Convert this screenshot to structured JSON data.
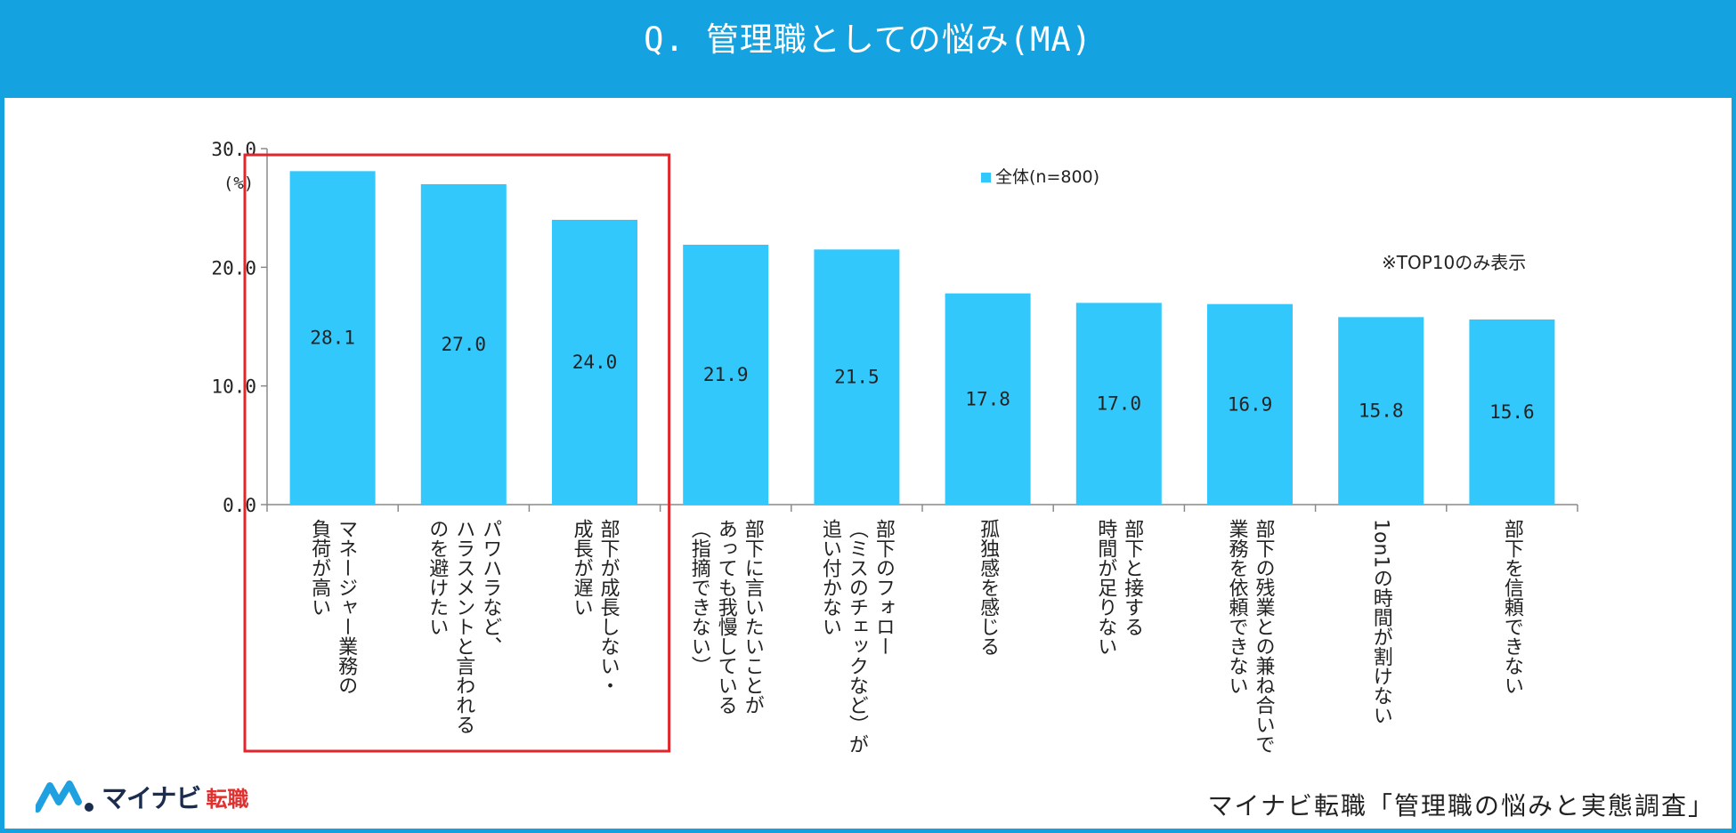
{
  "header": {
    "title": "Q. 管理職としての悩み(MA)"
  },
  "chart_data": {
    "type": "bar",
    "title": "Q. 管理職としての悩み(MA)",
    "ylabel": "(%)",
    "ylim": [
      0,
      30
    ],
    "yticks": [
      "30.0",
      "20.0",
      "10.0",
      "0.0"
    ],
    "legend": {
      "label": "全体(n=800)",
      "placement": "top-center"
    },
    "note": "※TOP10のみ表示",
    "bar_color": "#33c8fb",
    "highlight_color": "#e0262b",
    "highlighted_categories": [
      0,
      1,
      2
    ],
    "series": [
      {
        "name": "全体(n=800)",
        "values": [
          28.1,
          27.0,
          24.0,
          21.9,
          21.5,
          17.8,
          17.0,
          16.9,
          15.8,
          15.6
        ],
        "labels": [
          "28.1",
          "27.0",
          "24.0",
          "21.9",
          "21.5",
          "17.8",
          "17.0",
          "16.9",
          "15.8",
          "15.6"
        ]
      }
    ],
    "categories": [
      [
        "マネージャー業務の",
        "負荷が高い"
      ],
      [
        "パワハラなど、",
        "ハラスメントと言われる",
        "のを避けたい"
      ],
      [
        "部下が成長しない・",
        "成長が遅い"
      ],
      [
        "部下に言いたいことが",
        "あっても我慢している",
        "（指摘できない）"
      ],
      [
        "部下のフォロー",
        "（ミスのチェックなど）が",
        "追い付かない"
      ],
      [
        "孤独感を感じる"
      ],
      [
        "部下と接する",
        "時間が足りない"
      ],
      [
        "部下の残業との兼ね合いで",
        "業務を依頼できない"
      ],
      [
        "1on1の時間が割けない"
      ],
      [
        "部下を信頼できない"
      ]
    ]
  },
  "footer": {
    "logo_text": "マイナビ",
    "logo_sub": "転職",
    "source": "マイナビ転職「管理職の悩みと実態調査」"
  },
  "colors": {
    "header": "#14a3e0",
    "logo_navy": "#1b2d4f",
    "logo_red": "#e03030"
  }
}
